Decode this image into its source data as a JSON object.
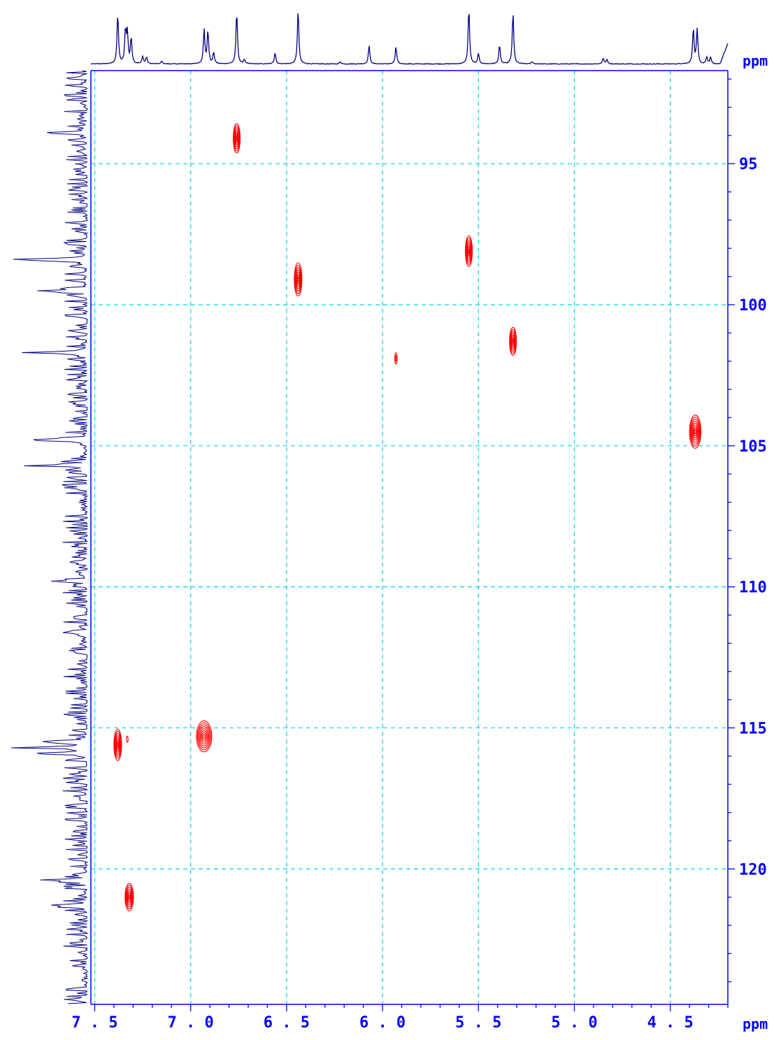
{
  "chart_data": {
    "type": "2D NMR contour plot (HSQC)",
    "x_axis": {
      "unit_label": "ppm",
      "range": [
        7.52,
        4.2
      ],
      "reversed": true,
      "ticks": [
        7.5,
        7.0,
        6.5,
        6.0,
        5.5,
        5.0,
        4.5
      ],
      "tick_labels": [
        "7.5",
        "7.0",
        "6.5",
        "6.0",
        "5.5",
        "5.0",
        "4.5"
      ]
    },
    "y_axis": {
      "unit_label": "ppm",
      "range": [
        91.7,
        124.8
      ],
      "side": "right",
      "ticks": [
        95,
        100,
        105,
        110,
        115,
        120
      ],
      "tick_labels": [
        "95",
        "100",
        "105",
        "110",
        "115",
        "120"
      ]
    },
    "grid": true,
    "colors": {
      "grid": "#00d5e8",
      "axes": "#0000ff",
      "projection": "#000080",
      "contours": "#ff0000",
      "labels": "#0000ff"
    },
    "cross_peaks": [
      {
        "x": 6.76,
        "y": 94.1,
        "w": 0.018,
        "h": 1.05,
        "levels": 7
      },
      {
        "x": 6.44,
        "y": 99.1,
        "w": 0.02,
        "h": 1.18,
        "levels": 7
      },
      {
        "x": 5.55,
        "y": 98.1,
        "w": 0.018,
        "h": 1.1,
        "levels": 7
      },
      {
        "x": 5.32,
        "y": 101.3,
        "w": 0.018,
        "h": 1.0,
        "levels": 7
      },
      {
        "x": 5.93,
        "y": 101.9,
        "w": 0.006,
        "h": 0.4,
        "levels": 2
      },
      {
        "x": 4.37,
        "y": 104.5,
        "w": 0.03,
        "h": 1.18,
        "levels": 8
      },
      {
        "x": 7.38,
        "y": 115.6,
        "w": 0.02,
        "h": 1.12,
        "levels": 7
      },
      {
        "x": 7.33,
        "y": 115.4,
        "w": 0.004,
        "h": 0.22,
        "levels": 1
      },
      {
        "x": 6.93,
        "y": 115.3,
        "w": 0.04,
        "h": 1.1,
        "levels": 8
      },
      {
        "x": 7.32,
        "y": 121.0,
        "w": 0.022,
        "h": 0.98,
        "levels": 7
      }
    ],
    "projection_1h_peaks": [
      {
        "x": 7.38,
        "h": 0.88
      },
      {
        "x": 7.34,
        "h": 0.58
      },
      {
        "x": 7.33,
        "h": 0.52
      },
      {
        "x": 7.31,
        "h": 0.45
      },
      {
        "x": 7.25,
        "h": 0.13
      },
      {
        "x": 7.23,
        "h": 0.12
      },
      {
        "x": 7.15,
        "h": 0.05
      },
      {
        "x": 6.93,
        "h": 0.6
      },
      {
        "x": 6.91,
        "h": 0.58
      },
      {
        "x": 6.88,
        "h": 0.2
      },
      {
        "x": 6.76,
        "h": 0.92
      },
      {
        "x": 6.72,
        "h": 0.08
      },
      {
        "x": 6.56,
        "h": 0.2
      },
      {
        "x": 6.44,
        "h": 0.95
      },
      {
        "x": 6.22,
        "h": 0.04
      },
      {
        "x": 6.07,
        "h": 0.32
      },
      {
        "x": 5.93,
        "h": 0.3
      },
      {
        "x": 5.55,
        "h": 0.98
      },
      {
        "x": 5.5,
        "h": 0.18
      },
      {
        "x": 5.39,
        "h": 0.33
      },
      {
        "x": 5.32,
        "h": 0.9
      },
      {
        "x": 5.22,
        "h": 0.04
      },
      {
        "x": 4.85,
        "h": 0.1
      },
      {
        "x": 4.83,
        "h": 0.08
      },
      {
        "x": 4.38,
        "h": 0.62
      },
      {
        "x": 4.36,
        "h": 0.6
      },
      {
        "x": 4.31,
        "h": 0.12
      },
      {
        "x": 4.29,
        "h": 0.12
      }
    ],
    "projection_13c_peaks": [
      {
        "y": 93.9,
        "h": 0.5
      },
      {
        "y": 98.4,
        "h": 1.0
      },
      {
        "y": 99.5,
        "h": 0.56
      },
      {
        "y": 101.7,
        "h": 0.8
      },
      {
        "y": 104.8,
        "h": 0.77
      },
      {
        "y": 105.7,
        "h": 0.7
      },
      {
        "y": 109.8,
        "h": 0.3
      },
      {
        "y": 115.5,
        "h": 0.65
      },
      {
        "y": 115.7,
        "h": 0.72
      },
      {
        "y": 115.9,
        "h": 0.6
      },
      {
        "y": 120.4,
        "h": 0.5
      },
      {
        "y": 121.3,
        "h": 0.45
      }
    ]
  }
}
